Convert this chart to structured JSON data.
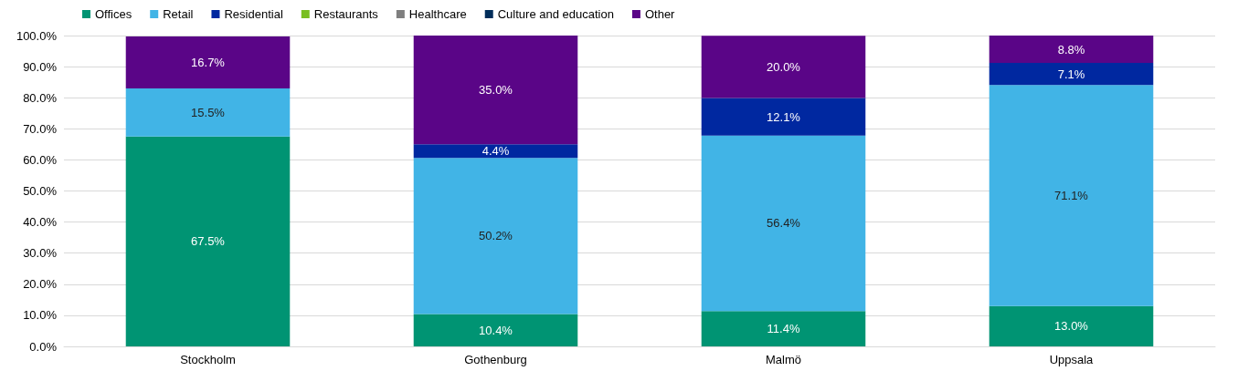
{
  "chart_data": {
    "type": "bar",
    "stacked": true,
    "categories": [
      "Stockholm",
      "Gothenburg",
      "Malmö",
      "Uppsala"
    ],
    "series": [
      {
        "name": "Offices",
        "color": "#009473",
        "values": [
          67.5,
          10.4,
          11.4,
          13.0
        ],
        "value_labels": [
          "67.5%",
          "10.4%",
          "11.4%",
          "13.0%"
        ]
      },
      {
        "name": "Retail",
        "color": "#41b4e6",
        "values": [
          15.5,
          50.2,
          56.4,
          71.1
        ],
        "value_labels": [
          "15.5%",
          "50.2%",
          "56.4%",
          "71.1%"
        ]
      },
      {
        "name": "Residential",
        "color": "#0028a0",
        "values": [
          null,
          4.4,
          12.1,
          7.1
        ],
        "value_labels": [
          null,
          "4.4%",
          "12.1%",
          "7.1%"
        ]
      },
      {
        "name": "Restaurants",
        "color": "#78be20",
        "values": [
          null,
          null,
          null,
          null
        ]
      },
      {
        "name": "Healthcare",
        "color": "#7f7f7f",
        "values": [
          null,
          null,
          null,
          null
        ]
      },
      {
        "name": "Culture and education",
        "color": "#002d5a",
        "values": [
          null,
          null,
          null,
          null
        ]
      },
      {
        "name": "Other",
        "color": "#5a0587",
        "values": [
          16.7,
          35.0,
          20.0,
          8.8
        ],
        "value_labels": [
          "16.7%",
          "35.0%",
          "20.0%",
          "8.8%"
        ]
      }
    ],
    "ylim": [
      0,
      100
    ],
    "yticks": [
      {
        "value": 0,
        "label": "0.0%"
      },
      {
        "value": 10,
        "label": "10.0%"
      },
      {
        "value": 20,
        "label": "20.0%"
      },
      {
        "value": 30,
        "label": "30.0%"
      },
      {
        "value": 40,
        "label": "40.0%"
      },
      {
        "value": 50,
        "label": "50.0%"
      },
      {
        "value": 60,
        "label": "60.0%"
      },
      {
        "value": 70,
        "label": "70.0%"
      },
      {
        "value": 80,
        "label": "80.0%"
      },
      {
        "value": 90,
        "label": "90.0%"
      },
      {
        "value": 100,
        "label": "100.0%"
      }
    ],
    "grid": "y",
    "legend": "top"
  }
}
